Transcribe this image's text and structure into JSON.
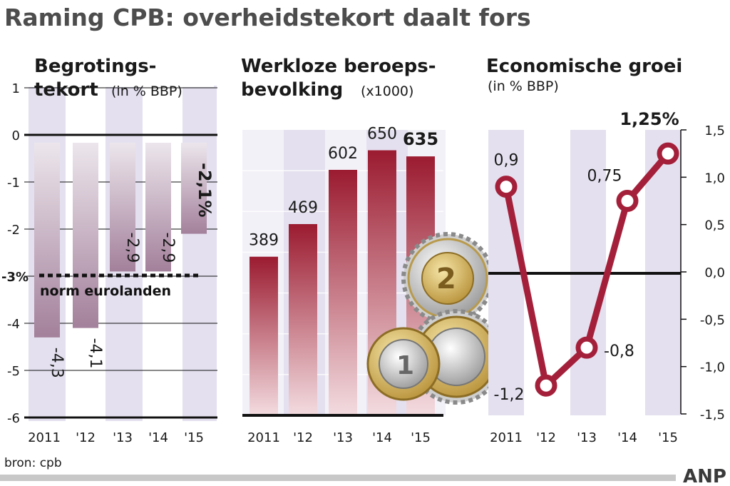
{
  "title": "Raming CPB: overheidstekort daalt fors",
  "source": "bron: cpb",
  "agency": "ANP",
  "colors": {
    "bar_dark": "#9b1b30",
    "bar_light": "#cfc6d3",
    "bar_purple": "#a3809b",
    "line": "#a4203a",
    "band": "#e4e0ef",
    "axis": "#111111"
  },
  "chart_data": [
    {
      "type": "bar",
      "title_lines": [
        "Begrotings-",
        "tekort"
      ],
      "subtitle": "(in % BBP)",
      "categories": [
        "2011",
        "'12",
        "'13",
        "'14",
        "'15"
      ],
      "values": [
        -4.3,
        -4.1,
        -2.9,
        -2.9,
        -2.1
      ],
      "value_labels": [
        "-4,3",
        "-4,1",
        "-2,9",
        "-2,9",
        "-2,1%"
      ],
      "ylim": [
        -6,
        1
      ],
      "yticks": [
        "1",
        "0",
        "-1",
        "-2",
        "-3%",
        "-4",
        "-5",
        "-6"
      ],
      "reference_line": {
        "value": -3,
        "label": "norm eurolanden"
      }
    },
    {
      "type": "bar",
      "title_lines": [
        "Werkloze beroeps-",
        "bevolking"
      ],
      "subtitle": "(x1000)",
      "categories": [
        "2011",
        "'12",
        "'13",
        "'14",
        "'15"
      ],
      "values": [
        389,
        469,
        602,
        650,
        635
      ],
      "value_labels": [
        "389",
        "469",
        "602",
        "650",
        "635"
      ],
      "ylim": [
        0,
        700
      ]
    },
    {
      "type": "line",
      "title_lines": [
        "Economische groei"
      ],
      "subtitle": "(in % BBP)",
      "categories": [
        "2011",
        "'12",
        "'13",
        "'14",
        "'15"
      ],
      "values": [
        0.9,
        -1.2,
        -0.8,
        0.75,
        1.25
      ],
      "value_labels": [
        "0,9",
        "-1,2",
        "-0,8",
        "0,75",
        "1,25%"
      ],
      "ylim": [
        -1.5,
        1.5
      ],
      "yticks": [
        "1,5",
        "1,0",
        "0,5",
        "0,0",
        "-0,5",
        "-1,0",
        "-1,5"
      ]
    }
  ]
}
